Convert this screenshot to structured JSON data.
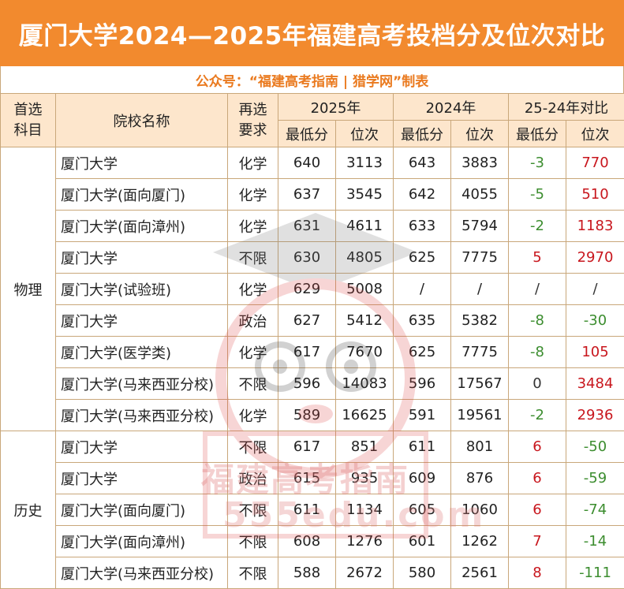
{
  "title": "厦门大学2024—2025年福建高考投档分及位次对比",
  "subtitle": "公众号：“福建高考指南 | 猎学网”制表",
  "headers": {
    "subject": "首选\n科目",
    "school": "院校名称",
    "requirement": "再选\n要求",
    "y2025": "2025年",
    "y2024": "2024年",
    "diff": "25-24年对比",
    "min_score": "最低分",
    "rank": "位次"
  },
  "groups": [
    {
      "subject": "物理",
      "rows": [
        {
          "school": "厦门大学",
          "req": "化学",
          "s25": "640",
          "r25": "3113",
          "s24": "643",
          "r24": "3883",
          "ds": "-3",
          "dr": "770",
          "ds_type": "neg",
          "dr_type": "pos"
        },
        {
          "school": "厦门大学(面向厦门)",
          "req": "化学",
          "s25": "637",
          "r25": "3545",
          "s24": "642",
          "r24": "4055",
          "ds": "-5",
          "dr": "510",
          "ds_type": "neg",
          "dr_type": "pos"
        },
        {
          "school": "厦门大学(面向漳州)",
          "req": "化学",
          "s25": "631",
          "r25": "4611",
          "s24": "633",
          "r24": "5794",
          "ds": "-2",
          "dr": "1183",
          "ds_type": "neg",
          "dr_type": "pos"
        },
        {
          "school": "厦门大学",
          "req": "不限",
          "s25": "630",
          "r25": "4805",
          "s24": "625",
          "r24": "7775",
          "ds": "5",
          "dr": "2970",
          "ds_type": "pos",
          "dr_type": "pos"
        },
        {
          "school": "厦门大学(试验班)",
          "req": "化学",
          "s25": "629",
          "r25": "5008",
          "s24": "/",
          "r24": "/",
          "ds": "/",
          "dr": "/",
          "ds_type": "slash",
          "dr_type": "slash"
        },
        {
          "school": "厦门大学",
          "req": "政治",
          "s25": "627",
          "r25": "5412",
          "s24": "635",
          "r24": "5382",
          "ds": "-8",
          "dr": "-30",
          "ds_type": "neg",
          "dr_type": "neg"
        },
        {
          "school": "厦门大学(医学类)",
          "req": "化学",
          "s25": "617",
          "r25": "7670",
          "s24": "625",
          "r24": "7775",
          "ds": "-8",
          "dr": "105",
          "ds_type": "neg",
          "dr_type": "pos"
        },
        {
          "school": "厦门大学(马来西亚分校)",
          "req": "不限",
          "s25": "596",
          "r25": "14083",
          "s24": "596",
          "r24": "17567",
          "ds": "0",
          "dr": "3484",
          "ds_type": "zero",
          "dr_type": "pos"
        },
        {
          "school": "厦门大学(马来西亚分校)",
          "req": "化学",
          "s25": "589",
          "r25": "16625",
          "s24": "591",
          "r24": "19561",
          "ds": "-2",
          "dr": "2936",
          "ds_type": "neg",
          "dr_type": "pos"
        }
      ]
    },
    {
      "subject": "历史",
      "rows": [
        {
          "school": "厦门大学",
          "req": "不限",
          "s25": "617",
          "r25": "851",
          "s24": "611",
          "r24": "801",
          "ds": "6",
          "dr": "-50",
          "ds_type": "pos",
          "dr_type": "neg"
        },
        {
          "school": "厦门大学",
          "req": "政治",
          "s25": "615",
          "r25": "935",
          "s24": "609",
          "r24": "876",
          "ds": "6",
          "dr": "-59",
          "ds_type": "pos",
          "dr_type": "neg"
        },
        {
          "school": "厦门大学(面向厦门)",
          "req": "不限",
          "s25": "611",
          "r25": "1134",
          "s24": "605",
          "r24": "1060",
          "ds": "6",
          "dr": "-74",
          "ds_type": "pos",
          "dr_type": "neg"
        },
        {
          "school": "厦门大学(面向漳州)",
          "req": "不限",
          "s25": "608",
          "r25": "1276",
          "s24": "601",
          "r24": "1262",
          "ds": "7",
          "dr": "-14",
          "ds_type": "pos",
          "dr_type": "neg"
        },
        {
          "school": "厦门大学(马来西亚分校)",
          "req": "不限",
          "s25": "588",
          "r25": "2672",
          "s24": "580",
          "r24": "2561",
          "ds": "8",
          "dr": "-111",
          "ds_type": "pos",
          "dr_type": "neg"
        }
      ]
    }
  ],
  "watermark": {
    "line1": "福建高考指南",
    "line2": "555edu.com",
    "color": "#e07b7b"
  },
  "colors": {
    "title_bg": "#f28a2e",
    "header_bg": "#fde6cc",
    "subtitle": "#ea7a1f",
    "positive": "#c8161d",
    "negative": "#3c8d2f",
    "border": "#c9a77a"
  }
}
